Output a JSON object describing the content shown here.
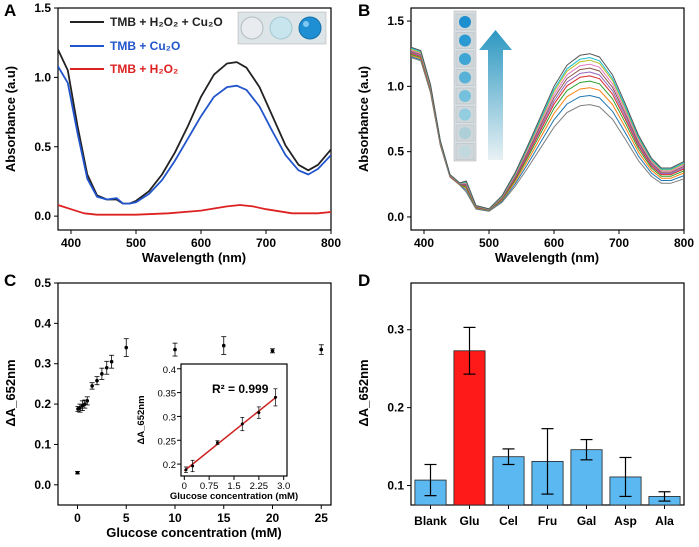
{
  "panel_letters": [
    "A",
    "B",
    "C",
    "D"
  ],
  "chart_data": [
    {
      "id": "A",
      "type": "line",
      "xlabel": "Wavelength (nm)",
      "ylabel": "Absorbance (a.u)",
      "xlim": [
        380,
        800
      ],
      "ylim": [
        -0.1,
        1.5
      ],
      "xticks": [
        400,
        500,
        600,
        700,
        800
      ],
      "yticks": [
        0.0,
        0.5,
        1.0,
        1.5
      ],
      "legend": [
        "TMB + H₂O₂ + Cu₂O",
        "TMB + Cu₂O",
        "TMB + H₂O₂"
      ],
      "legend_placement": "top-left",
      "series": [
        {
          "name": "TMB + H₂O₂ + Cu₂O",
          "color": "#222222",
          "x": [
            380,
            395,
            410,
            425,
            440,
            455,
            470,
            480,
            490,
            500,
            520,
            540,
            560,
            580,
            600,
            620,
            640,
            655,
            670,
            690,
            710,
            730,
            750,
            765,
            780,
            800
          ],
          "y": [
            1.2,
            1.05,
            0.65,
            0.3,
            0.15,
            0.12,
            0.12,
            0.09,
            0.09,
            0.11,
            0.18,
            0.3,
            0.46,
            0.65,
            0.86,
            1.02,
            1.1,
            1.11,
            1.07,
            0.93,
            0.72,
            0.51,
            0.37,
            0.33,
            0.37,
            0.48
          ]
        },
        {
          "name": "TMB + Cu₂O",
          "color": "#2255cc",
          "x": [
            380,
            395,
            410,
            425,
            440,
            455,
            470,
            480,
            490,
            500,
            520,
            540,
            560,
            580,
            600,
            620,
            640,
            655,
            670,
            690,
            710,
            730,
            750,
            765,
            780,
            800
          ],
          "y": [
            1.08,
            0.96,
            0.6,
            0.27,
            0.14,
            0.12,
            0.13,
            0.09,
            0.09,
            0.1,
            0.16,
            0.26,
            0.4,
            0.56,
            0.72,
            0.86,
            0.93,
            0.94,
            0.91,
            0.79,
            0.61,
            0.44,
            0.33,
            0.3,
            0.34,
            0.44
          ]
        },
        {
          "name": "TMB + H₂O₂",
          "color": "#dd2222",
          "x": [
            380,
            400,
            420,
            440,
            460,
            480,
            500,
            550,
            600,
            640,
            660,
            680,
            700,
            740,
            780,
            800
          ],
          "y": [
            0.08,
            0.05,
            0.02,
            0.01,
            0.01,
            0.01,
            0.01,
            0.02,
            0.04,
            0.07,
            0.08,
            0.07,
            0.05,
            0.02,
            0.02,
            0.03
          ]
        }
      ]
    },
    {
      "id": "B",
      "type": "line",
      "xlabel": "Wavelength (nm)",
      "ylabel": "Absorbance (a.u)",
      "xlim": [
        380,
        800
      ],
      "ylim": [
        -0.1,
        1.6
      ],
      "xticks": [
        400,
        500,
        600,
        700,
        800
      ],
      "yticks": [
        0.0,
        0.5,
        1.0,
        1.5
      ],
      "series_count": 11,
      "peak_values": [
        0.86,
        0.93,
        0.99,
        1.04,
        1.08,
        1.11,
        1.14,
        1.17,
        1.2,
        1.22,
        1.25
      ],
      "colors": [
        "#7f7f7f",
        "#1f77b4",
        "#ff7f0e",
        "#2ca02c",
        "#d62728",
        "#9467bd",
        "#8c564b",
        "#e377c2",
        "#bcbd22",
        "#17becf",
        "#555555"
      ]
    },
    {
      "id": "C",
      "type": "scatter",
      "xlabel": "Glucose concentration (mM)",
      "ylabel": "ΔA_652nm",
      "xlim": [
        -2,
        26
      ],
      "ylim": [
        -0.05,
        0.5
      ],
      "xticks": [
        0,
        5,
        10,
        15,
        20,
        25
      ],
      "yticks": [
        0.0,
        0.1,
        0.2,
        0.3,
        0.4,
        0.5
      ],
      "x": [
        0,
        0.05,
        0.25,
        0.5,
        0.75,
        1.0,
        1.5,
        2.0,
        2.5,
        3.0,
        3.5,
        5.0,
        10.0,
        15.0,
        20.0,
        25.0
      ],
      "y": [
        0.03,
        0.188,
        0.19,
        0.196,
        0.2,
        0.208,
        0.245,
        0.258,
        0.275,
        0.29,
        0.305,
        0.34,
        0.335,
        0.345,
        0.332,
        0.335
      ],
      "err": [
        0.003,
        0.006,
        0.01,
        0.012,
        0.01,
        0.01,
        0.008,
        0.01,
        0.014,
        0.016,
        0.016,
        0.022,
        0.016,
        0.022,
        0.005,
        0.012
      ],
      "inset": {
        "xlabel": "Glucose concentration (mM)",
        "ylabel": "ΔA_652nm",
        "xlim": [
          -0.1,
          3.1
        ],
        "ylim": [
          0.175,
          0.41
        ],
        "xticks": [
          "0",
          "0.75",
          "1.5",
          "2.25",
          "3.0"
        ],
        "xtick_values": [
          0,
          0.75,
          1.5,
          2.25,
          3.0
        ],
        "yticks": [
          "0.2",
          "0.25",
          "0.3",
          "0.35",
          "0.4"
        ],
        "ytick_values": [
          0.2,
          0.25,
          0.3,
          0.35,
          0.4
        ],
        "annotation": "R² = 0.999",
        "x": [
          0.05,
          0.25,
          1.0,
          1.75,
          2.25,
          2.75
        ],
        "y": [
          0.188,
          0.196,
          0.245,
          0.284,
          0.308,
          0.34
        ],
        "err": [
          0.006,
          0.012,
          0.004,
          0.014,
          0.012,
          0.018
        ],
        "fit": {
          "x": [
            0,
            2.8
          ],
          "y": [
            0.186,
            0.342
          ],
          "color": "#cc2222"
        }
      }
    },
    {
      "id": "D",
      "type": "bar",
      "xlabel": "",
      "ylabel": "ΔA_652nm",
      "ylim": [
        0.075,
        0.36
      ],
      "yticks": [
        0.1,
        0.2,
        0.3
      ],
      "categories": [
        "Blank",
        "Glu",
        "Cel",
        "Fru",
        "Gal",
        "Asp",
        "Ala"
      ],
      "values": [
        0.107,
        0.273,
        0.137,
        0.131,
        0.146,
        0.111,
        0.086
      ],
      "errors": [
        0.02,
        0.03,
        0.01,
        0.042,
        0.013,
        0.025,
        0.006
      ],
      "colors": [
        "#5cb8f0",
        "#ff1a1a",
        "#5cb8f0",
        "#5cb8f0",
        "#5cb8f0",
        "#5cb8f0",
        "#5cb8f0"
      ]
    }
  ]
}
